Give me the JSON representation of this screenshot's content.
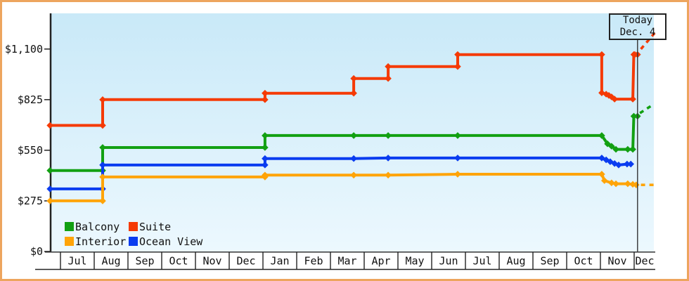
{
  "chart_data": {
    "type": "line-step",
    "title": "",
    "today": {
      "line1": "Today",
      "line2": "Dec. 4",
      "month_position": 17.1
    },
    "y_axis": {
      "tick_labels": [
        "$0",
        "$275",
        "$550",
        "$825",
        "$1,100"
      ],
      "tick_values": [
        0,
        275,
        550,
        825,
        1100
      ],
      "range": [
        0,
        1100
      ]
    },
    "x_axis": {
      "month_labels": [
        "Jul",
        "Aug",
        "Sep",
        "Oct",
        "Nov",
        "Dec",
        "Jan",
        "Feb",
        "Mar",
        "Apr",
        "May",
        "Jun",
        "Jul",
        "Aug",
        "Sep",
        "Oct",
        "Nov",
        "Dec"
      ]
    },
    "legend": [
      {
        "label": "Balcony",
        "color": "#12a012"
      },
      {
        "label": "Suite",
        "color": "#f53a05"
      },
      {
        "label": "Interior",
        "color": "#ffa408"
      },
      {
        "label": "Ocean View",
        "color": "#0a3cf0"
      }
    ],
    "series": [
      {
        "name": "Suite",
        "color": "#f53a05",
        "points": [
          [
            -0.31,
            685
          ],
          [
            1.25,
            685
          ],
          [
            1.25,
            825
          ],
          [
            6.06,
            825
          ],
          [
            6.06,
            860
          ],
          [
            8.69,
            860
          ],
          [
            8.69,
            940
          ],
          [
            9.71,
            940
          ],
          [
            9.71,
            1005
          ],
          [
            11.77,
            1005
          ],
          [
            11.77,
            1070
          ],
          [
            16.04,
            1070
          ],
          [
            16.04,
            862
          ],
          [
            16.17,
            855
          ],
          [
            16.25,
            848
          ],
          [
            16.33,
            840
          ],
          [
            16.42,
            828
          ],
          [
            16.96,
            828
          ],
          [
            16.99,
            1070
          ],
          [
            17.02,
            1070
          ],
          [
            17.1,
            1070
          ]
        ],
        "forecast": [
          [
            17.2,
            1100
          ],
          [
            17.62,
            1190
          ]
        ]
      },
      {
        "name": "Balcony",
        "color": "#12a012",
        "points": [
          [
            -0.31,
            440
          ],
          [
            1.25,
            440
          ],
          [
            1.25,
            565
          ],
          [
            6.06,
            565
          ],
          [
            6.06,
            630
          ],
          [
            8.69,
            630
          ],
          [
            9.71,
            630
          ],
          [
            11.77,
            630
          ],
          [
            16.04,
            630
          ],
          [
            16.21,
            585
          ],
          [
            16.33,
            572
          ],
          [
            16.46,
            555
          ],
          [
            16.81,
            555
          ],
          [
            16.96,
            555
          ],
          [
            16.99,
            735
          ],
          [
            17.1,
            735
          ]
        ],
        "forecast": [
          [
            17.17,
            752
          ],
          [
            17.58,
            800
          ]
        ]
      },
      {
        "name": "Ocean View",
        "color": "#0a3cf0",
        "points": [
          [
            -0.31,
            340
          ],
          [
            1.25,
            340
          ],
          [
            1.25,
            470
          ],
          [
            6.06,
            470
          ],
          [
            6.06,
            505
          ],
          [
            8.69,
            505
          ],
          [
            9.71,
            508
          ],
          [
            11.77,
            508
          ],
          [
            16.04,
            508
          ],
          [
            16.17,
            498
          ],
          [
            16.29,
            488
          ],
          [
            16.42,
            478
          ],
          [
            16.54,
            470
          ],
          [
            16.79,
            475
          ],
          [
            16.9,
            475
          ]
        ],
        "forecast": []
      },
      {
        "name": "Interior",
        "color": "#ffa408",
        "points": [
          [
            -0.31,
            275
          ],
          [
            1.25,
            275
          ],
          [
            1.25,
            405
          ],
          [
            6.06,
            405
          ],
          [
            6.06,
            415
          ],
          [
            8.69,
            415
          ],
          [
            9.71,
            415
          ],
          [
            11.77,
            420
          ],
          [
            16.04,
            420
          ],
          [
            16.12,
            385
          ],
          [
            16.33,
            373
          ],
          [
            16.46,
            368
          ],
          [
            16.81,
            368
          ],
          [
            16.96,
            365
          ],
          [
            17.06,
            362
          ]
        ],
        "forecast": [
          [
            17.2,
            362
          ],
          [
            17.58,
            362
          ]
        ]
      }
    ],
    "colors": {
      "frame_border": "#eda55e",
      "plot_bg_top": "#c9e9f8",
      "plot_bg_bottom": "#ecf8fe",
      "axis": "#222222"
    }
  }
}
